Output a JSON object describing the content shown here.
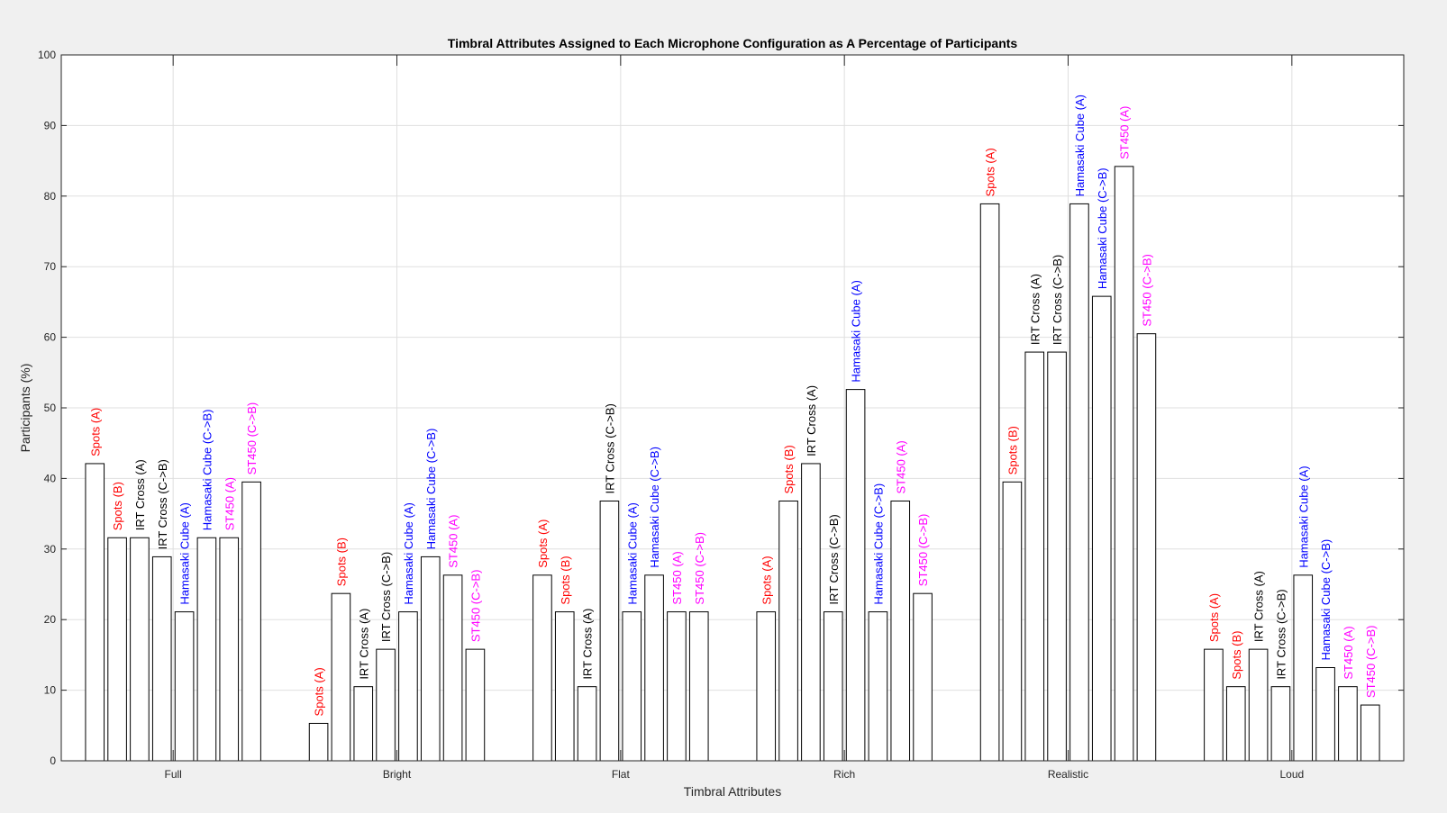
{
  "chart_data": {
    "type": "bar",
    "title": "Timbral Attributes Assigned to Each Microphone Configuration as A Percentage of Participants",
    "xlabel": "Timbral Attributes",
    "ylabel": "Participants (%)",
    "ylim": [
      0,
      100
    ],
    "yticks": [
      "0",
      "10",
      "20",
      "30",
      "40",
      "50",
      "60",
      "70",
      "80",
      "90",
      "100"
    ],
    "grid": true,
    "categories": [
      "Full",
      "Bright",
      "Flat",
      "Rich",
      "Realistic",
      "Loud"
    ],
    "series": [
      {
        "name": "Spots (A)",
        "color": "#ff0000",
        "values": [
          42.1,
          5.3,
          26.3,
          21.1,
          78.9,
          15.8
        ]
      },
      {
        "name": "Spots (B)",
        "color": "#ff0000",
        "values": [
          31.6,
          23.7,
          21.1,
          36.8,
          39.5,
          10.5
        ]
      },
      {
        "name": "IRT Cross (A)",
        "color": "#000000",
        "values": [
          31.6,
          10.5,
          10.5,
          42.1,
          57.9,
          15.8
        ]
      },
      {
        "name": "IRT Cross (C->B)",
        "color": "#000000",
        "values": [
          28.9,
          15.8,
          36.8,
          21.1,
          57.9,
          10.5
        ]
      },
      {
        "name": "Hamasaki Cube (A)",
        "color": "#0000ff",
        "values": [
          21.1,
          21.1,
          21.1,
          52.6,
          78.9,
          26.3
        ]
      },
      {
        "name": "Hamasaki Cube (C->B)",
        "color": "#0000ff",
        "values": [
          31.6,
          28.9,
          26.3,
          21.1,
          65.8,
          13.2
        ]
      },
      {
        "name": "ST450 (A)",
        "color": "#ff00ff",
        "values": [
          31.6,
          26.3,
          21.1,
          36.8,
          84.2,
          10.5
        ]
      },
      {
        "name": "ST450 (C->B)",
        "color": "#ff00ff",
        "values": [
          39.5,
          15.8,
          21.1,
          23.7,
          60.5,
          7.9
        ]
      }
    ]
  }
}
